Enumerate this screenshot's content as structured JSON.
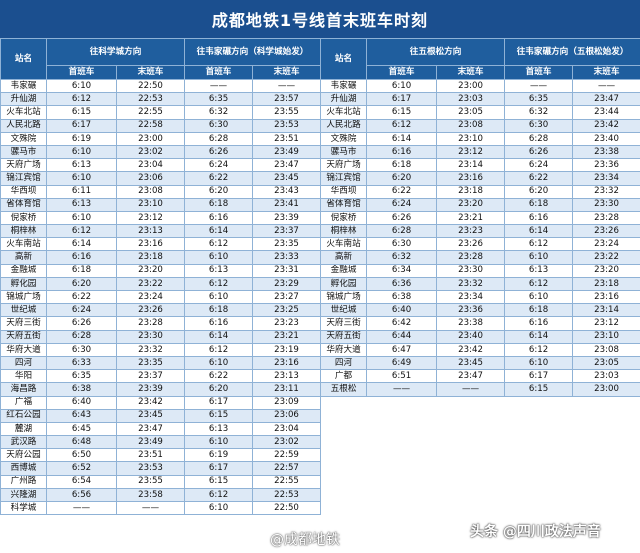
{
  "title": "成都地铁1号线首末班车时刻",
  "headers": {
    "station": "站名",
    "dir1": "往科学城方向",
    "dir2": "往韦家碾方向（科学城始发）",
    "dir3": "往五根松方向",
    "dir4": "往韦家碾方向（五根松始发）",
    "first": "首班车",
    "last": "末班车"
  },
  "rows_left": [
    [
      "韦家碾",
      "6:10",
      "22:50",
      "——",
      "——"
    ],
    [
      "升仙湖",
      "6:12",
      "22:53",
      "6:35",
      "23:57"
    ],
    [
      "火车北站",
      "6:15",
      "22:55",
      "6:32",
      "23:55"
    ],
    [
      "人民北路",
      "6:17",
      "22:58",
      "6:30",
      "23:53"
    ],
    [
      "文殊院",
      "6:19",
      "23:00",
      "6:28",
      "23:51"
    ],
    [
      "骡马市",
      "6:10",
      "23:02",
      "6:26",
      "23:49"
    ],
    [
      "天府广场",
      "6:13",
      "23:04",
      "6:24",
      "23:47"
    ],
    [
      "锦江宾馆",
      "6:10",
      "23:06",
      "6:22",
      "23:45"
    ],
    [
      "华西坝",
      "6:11",
      "23:08",
      "6:20",
      "23:43"
    ],
    [
      "省体育馆",
      "6:13",
      "23:10",
      "6:18",
      "23:41"
    ],
    [
      "倪家桥",
      "6:10",
      "23:12",
      "6:16",
      "23:39"
    ],
    [
      "桐梓林",
      "6:12",
      "23:13",
      "6:14",
      "23:37"
    ],
    [
      "火车南站",
      "6:14",
      "23:16",
      "6:12",
      "23:35"
    ],
    [
      "高新",
      "6:16",
      "23:18",
      "6:10",
      "23:33"
    ],
    [
      "金融城",
      "6:18",
      "23:20",
      "6:13",
      "23:31"
    ],
    [
      "孵化园",
      "6:20",
      "23:22",
      "6:12",
      "23:29"
    ],
    [
      "锦城广场",
      "6:22",
      "23:24",
      "6:10",
      "23:27"
    ],
    [
      "世纪城",
      "6:24",
      "23:26",
      "6:18",
      "23:25"
    ],
    [
      "天府三街",
      "6:26",
      "23:28",
      "6:16",
      "23:23"
    ],
    [
      "天府五街",
      "6:28",
      "23:30",
      "6:14",
      "23:21"
    ],
    [
      "华府大道",
      "6:30",
      "23:32",
      "6:12",
      "23:19"
    ],
    [
      "四河",
      "6:33",
      "23:35",
      "6:10",
      "23:16"
    ],
    [
      "华阳",
      "6:35",
      "23:37",
      "6:22",
      "23:13"
    ],
    [
      "海昌路",
      "6:38",
      "23:39",
      "6:20",
      "23:11"
    ],
    [
      "广福",
      "6:40",
      "23:42",
      "6:17",
      "23:09"
    ],
    [
      "红石公园",
      "6:43",
      "23:45",
      "6:15",
      "23:06"
    ],
    [
      "麓湖",
      "6:45",
      "23:47",
      "6:13",
      "23:04"
    ],
    [
      "武汉路",
      "6:48",
      "23:49",
      "6:10",
      "23:02"
    ],
    [
      "天府公园",
      "6:50",
      "23:51",
      "6:19",
      "22:59"
    ],
    [
      "西博城",
      "6:52",
      "23:53",
      "6:17",
      "22:57"
    ],
    [
      "广州路",
      "6:54",
      "23:55",
      "6:15",
      "22:55"
    ],
    [
      "兴隆湖",
      "6:56",
      "23:58",
      "6:12",
      "22:53"
    ],
    [
      "科学城",
      "——",
      "——",
      "6:10",
      "22:50"
    ]
  ],
  "rows_right": [
    [
      "韦家碾",
      "6:10",
      "23:00",
      "——",
      "——"
    ],
    [
      "升仙湖",
      "6:17",
      "23:03",
      "6:35",
      "23:47"
    ],
    [
      "火车北站",
      "6:15",
      "23:05",
      "6:32",
      "23:44"
    ],
    [
      "人民北路",
      "6:12",
      "23:08",
      "6:30",
      "23:42"
    ],
    [
      "文殊院",
      "6:14",
      "23:10",
      "6:28",
      "23:40"
    ],
    [
      "骡马市",
      "6:16",
      "23:12",
      "6:26",
      "23:38"
    ],
    [
      "天府广场",
      "6:18",
      "23:14",
      "6:24",
      "23:36"
    ],
    [
      "锦江宾馆",
      "6:20",
      "23:16",
      "6:22",
      "23:34"
    ],
    [
      "华西坝",
      "6:22",
      "23:18",
      "6:20",
      "23:32"
    ],
    [
      "省体育馆",
      "6:24",
      "23:20",
      "6:18",
      "23:30"
    ],
    [
      "倪家桥",
      "6:26",
      "23:21",
      "6:16",
      "23:28"
    ],
    [
      "桐梓林",
      "6:28",
      "23:23",
      "6:14",
      "23:26"
    ],
    [
      "火车南站",
      "6:30",
      "23:26",
      "6:12",
      "23:24"
    ],
    [
      "高新",
      "6:32",
      "23:28",
      "6:10",
      "23:22"
    ],
    [
      "金融城",
      "6:34",
      "23:30",
      "6:13",
      "23:20"
    ],
    [
      "孵化园",
      "6:36",
      "23:32",
      "6:12",
      "23:18"
    ],
    [
      "锦城广场",
      "6:38",
      "23:34",
      "6:10",
      "23:16"
    ],
    [
      "世纪城",
      "6:40",
      "23:36",
      "6:18",
      "23:14"
    ],
    [
      "天府三街",
      "6:42",
      "23:38",
      "6:16",
      "23:12"
    ],
    [
      "天府五街",
      "6:44",
      "23:40",
      "6:14",
      "23:10"
    ],
    [
      "华府大道",
      "6:47",
      "23:42",
      "6:12",
      "23:08"
    ],
    [
      "四河",
      "6:49",
      "23:45",
      "6:10",
      "23:05"
    ],
    [
      "广都",
      "6:51",
      "23:47",
      "6:17",
      "23:03"
    ],
    [
      "五根松",
      "——",
      "——",
      "6:15",
      "23:00"
    ]
  ],
  "watermark_left": "@成都地铁",
  "watermark_right": "头条 @四川政法声音",
  "colors": {
    "header": "#1f5e9e",
    "title": "#1b4f8f",
    "stripe": "#dde9f6",
    "border": "#8fb2d6"
  }
}
